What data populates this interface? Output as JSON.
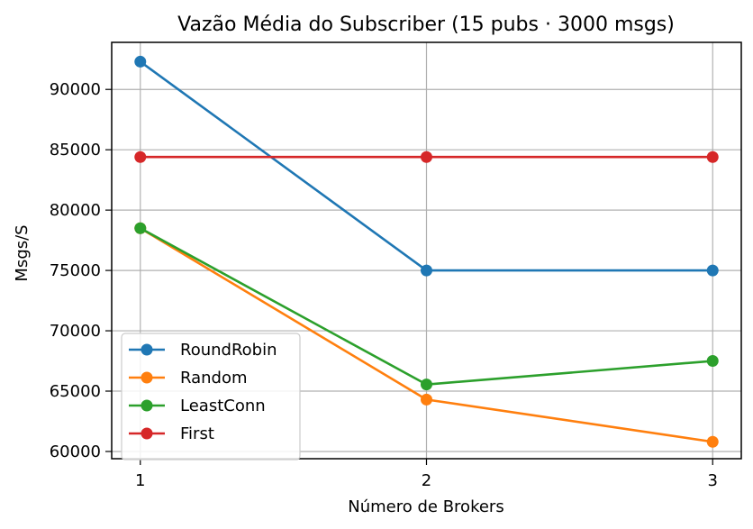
{
  "chart_data": {
    "type": "line",
    "title": "Vazão Média do Subscriber (15 pubs · 3000 msgs)",
    "xlabel": "Número de Brokers",
    "ylabel": "Msgs/S",
    "x": [
      1,
      2,
      3
    ],
    "x_ticks": [
      "1",
      "2",
      "3"
    ],
    "y_ticks": [
      "60000",
      "65000",
      "70000",
      "75000",
      "80000",
      "85000",
      "90000"
    ],
    "xlim": [
      0.9,
      3.1
    ],
    "ylim": [
      59400,
      93900
    ],
    "grid": true,
    "legend_position": "lower-left",
    "series": [
      {
        "name": "RoundRobin",
        "color": "#1f77b4",
        "values": [
          92300,
          75000,
          75000
        ]
      },
      {
        "name": "Random",
        "color": "#ff7f0e",
        "values": [
          78500,
          64300,
          60800
        ]
      },
      {
        "name": "LeastConn",
        "color": "#2ca02c",
        "values": [
          78500,
          65550,
          67500
        ]
      },
      {
        "name": "First",
        "color": "#d62728",
        "values": [
          84400,
          84400,
          84400
        ]
      }
    ]
  }
}
